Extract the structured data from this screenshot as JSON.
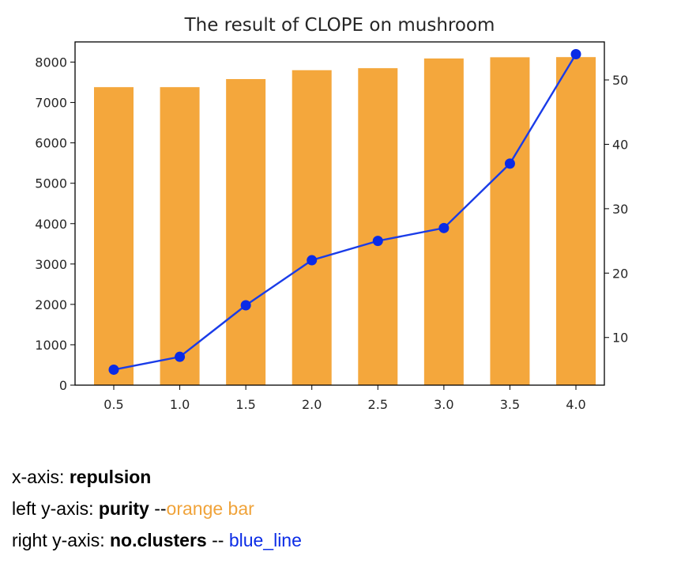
{
  "chart_data": {
    "type": "bar",
    "title": "The result of CLOPE on mushroom",
    "categories": [
      "0.5",
      "1.0",
      "1.5",
      "2.0",
      "2.5",
      "3.0",
      "3.5",
      "4.0"
    ],
    "series": [
      {
        "kind": "bar",
        "axis": "left",
        "color": "#F4A73C",
        "values": [
          7380,
          7380,
          7580,
          7800,
          7850,
          8090,
          8120,
          8124
        ]
      },
      {
        "kind": "line",
        "axis": "right",
        "color": "#1A3CE8",
        "values": [
          5,
          7,
          15,
          22,
          25,
          27,
          37,
          54
        ]
      }
    ],
    "left_axis": {
      "ylim": [
        0,
        8500
      ],
      "ticks": [
        0,
        1000,
        2000,
        3000,
        4000,
        5000,
        6000,
        7000,
        8000
      ]
    },
    "right_axis": {
      "ylim": [
        2.6,
        55.9
      ],
      "ticks": [
        10,
        20,
        30,
        40,
        50
      ]
    },
    "grid": false
  },
  "caption": {
    "line1": {
      "prefix": "x-axis: ",
      "bold": "repulsion"
    },
    "line2": {
      "prefix": "left y-axis: ",
      "bold": "purity",
      "sep": " --",
      "colored": "orange bar"
    },
    "line3": {
      "prefix": "right y-axis: ",
      "bold": "no.clusters",
      "sep": " -- ",
      "colored": "blue_line"
    }
  }
}
